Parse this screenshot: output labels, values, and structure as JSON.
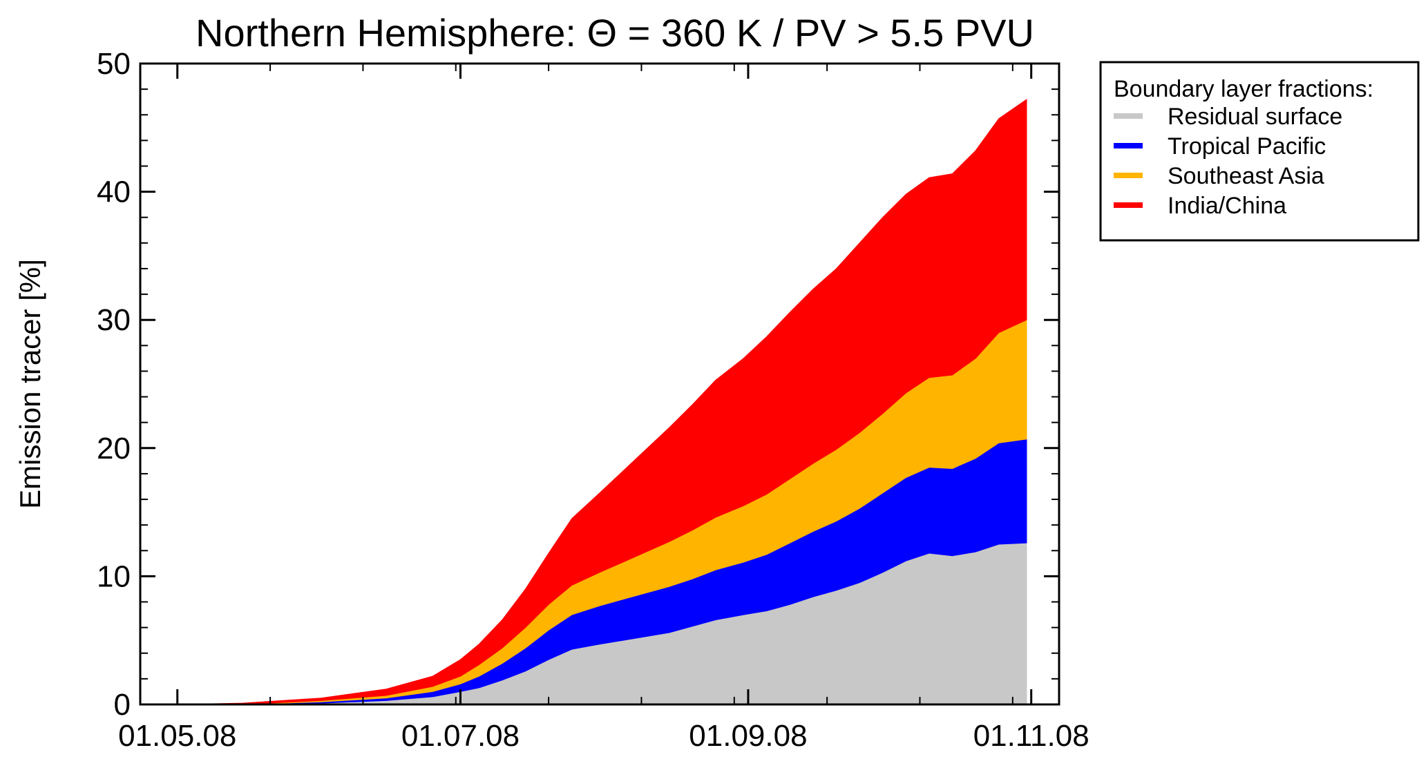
{
  "chart_data": {
    "type": "area",
    "stacked": true,
    "title": "Northern Hemisphere: Θ = 360 K / PV > 5.5 PVU",
    "xlabel": "",
    "ylabel": "Emission tracer [%]",
    "ylim": [
      0,
      50
    ],
    "yticks": [
      0,
      10,
      20,
      30,
      40,
      50
    ],
    "ytick_labels": [
      "0",
      "10",
      "20",
      "30",
      "40",
      "50"
    ],
    "xlim": [
      "2008-04-23",
      "2008-11-07"
    ],
    "xticks": [
      "2008-05-01",
      "2008-07-01",
      "2008-09-01",
      "2008-11-01"
    ],
    "xtick_labels": [
      "01.05.08",
      "01.07.08",
      "01.09.08",
      "01.11.08"
    ],
    "grid": false,
    "legend": {
      "title": "Boundary layer fractions:",
      "placement": "outside-right-top"
    },
    "x": [
      "2008-05-01",
      "2008-05-15",
      "2008-06-01",
      "2008-06-15",
      "2008-06-25",
      "2008-07-01",
      "2008-07-05",
      "2008-07-10",
      "2008-07-15",
      "2008-07-20",
      "2008-07-25",
      "2008-07-31",
      "2008-08-05",
      "2008-08-10",
      "2008-08-15",
      "2008-08-20",
      "2008-08-25",
      "2008-08-31",
      "2008-09-05",
      "2008-09-10",
      "2008-09-15",
      "2008-09-20",
      "2008-09-25",
      "2008-09-30",
      "2008-10-05",
      "2008-10-10",
      "2008-10-15",
      "2008-10-20",
      "2008-10-25",
      "2008-10-31"
    ],
    "series": [
      {
        "name": "Residual surface",
        "color": "#c8c8c8",
        "values": [
          0,
          0,
          0.1,
          0.3,
          0.6,
          1.0,
          1.3,
          1.9,
          2.6,
          3.5,
          4.3,
          4.7,
          5.0,
          5.3,
          5.6,
          6.1,
          6.6,
          7.0,
          7.3,
          7.8,
          8.4,
          8.9,
          9.5,
          10.3,
          11.2,
          11.8,
          11.6,
          11.9,
          12.5,
          12.6
        ]
      },
      {
        "name": "Tropical Pacific",
        "color": "#0000ff",
        "values": [
          0,
          0,
          0.1,
          0.2,
          0.4,
          0.6,
          0.9,
          1.3,
          1.8,
          2.3,
          2.7,
          3.0,
          3.2,
          3.4,
          3.6,
          3.7,
          3.9,
          4.1,
          4.4,
          4.8,
          5.1,
          5.4,
          5.8,
          6.2,
          6.5,
          6.7,
          6.8,
          7.3,
          7.9,
          8.1
        ]
      },
      {
        "name": "Southeast Asia",
        "color": "#ffb400",
        "values": [
          0,
          0,
          0.1,
          0.2,
          0.4,
          0.6,
          0.9,
          1.2,
          1.6,
          2.0,
          2.3,
          2.6,
          2.9,
          3.2,
          3.5,
          3.8,
          4.1,
          4.4,
          4.7,
          5.0,
          5.3,
          5.6,
          5.9,
          6.2,
          6.6,
          7.0,
          7.3,
          7.8,
          8.6,
          9.3
        ]
      },
      {
        "name": "India/China",
        "color": "#ff0000",
        "values": [
          0,
          0.1,
          0.2,
          0.5,
          0.8,
          1.3,
          1.6,
          2.2,
          3.0,
          4.0,
          5.2,
          6.2,
          7.1,
          8.0,
          8.9,
          9.8,
          10.7,
          11.5,
          12.3,
          13.0,
          13.6,
          14.1,
          14.8,
          15.3,
          15.5,
          15.6,
          15.7,
          16.2,
          16.7,
          17.2
        ]
      }
    ]
  }
}
